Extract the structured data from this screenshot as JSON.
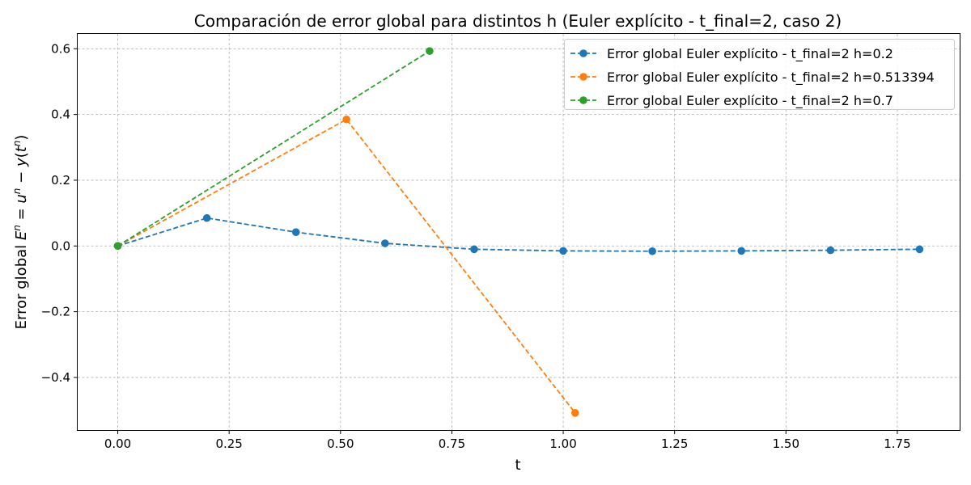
{
  "chart_data": {
    "type": "line",
    "title": "Comparación de error global para distintos h (Euler explícito - t_final=2, caso 2)",
    "xlabel": "t",
    "ylabel": "Error global E^n = u^n − y(t^n)",
    "ylabel_parts": {
      "prefix": "Error global ",
      "E": "E",
      "eq": " = ",
      "u": "u",
      "minus": " − ",
      "y": "y",
      "open": "(",
      "t": "t",
      "close": ")",
      "n": "n"
    },
    "xlim": [
      -0.09,
      1.89
    ],
    "ylim": [
      -0.56,
      0.645
    ],
    "x_ticks": [
      0.0,
      0.25,
      0.5,
      0.75,
      1.0,
      1.25,
      1.5,
      1.75
    ],
    "x_tick_labels": [
      "0.00",
      "0.25",
      "0.50",
      "0.75",
      "1.00",
      "1.25",
      "1.50",
      "1.75"
    ],
    "y_ticks": [
      -0.4,
      -0.2,
      0.0,
      0.2,
      0.4,
      0.6
    ],
    "y_tick_labels": [
      "−0.4",
      "−0.2",
      "0.0",
      "0.2",
      "0.4",
      "0.6"
    ],
    "grid": true,
    "legend_position": "top-right",
    "series": [
      {
        "name": "Error global Euler explícito - t_final=2 h=0.2",
        "color": "#1f77b4",
        "x": [
          0.0,
          0.2,
          0.4,
          0.6,
          0.8,
          1.0,
          1.2,
          1.4,
          1.6,
          1.8
        ],
        "y": [
          0.0,
          0.085,
          0.042,
          0.008,
          -0.01,
          -0.015,
          -0.016,
          -0.015,
          -0.013,
          -0.01
        ]
      },
      {
        "name": "Error global Euler explícito - t_final=2 h=0.513394",
        "color": "#ff7f0e",
        "x": [
          0.0,
          0.513394,
          1.026788
        ],
        "y": [
          0.0,
          0.385,
          -0.508
        ]
      },
      {
        "name": "Error global Euler explícito - t_final=2 h=0.7",
        "color": "#2ca02c",
        "x": [
          0.0,
          0.7
        ],
        "y": [
          0.0,
          0.593
        ]
      }
    ]
  }
}
